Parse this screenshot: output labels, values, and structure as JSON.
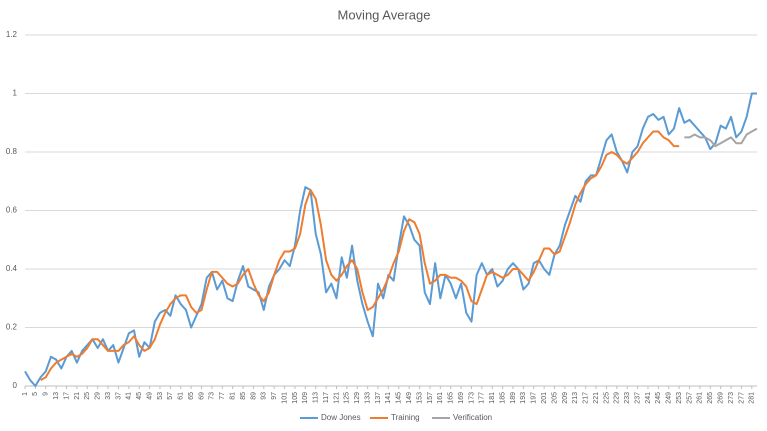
{
  "chart_data": {
    "type": "line",
    "title": "Moving Average",
    "x": [
      1,
      3,
      5,
      7,
      9,
      11,
      13,
      15,
      17,
      19,
      21,
      23,
      25,
      27,
      29,
      31,
      33,
      35,
      37,
      39,
      41,
      43,
      45,
      47,
      49,
      51,
      53,
      55,
      57,
      59,
      61,
      63,
      65,
      67,
      69,
      71,
      73,
      75,
      77,
      79,
      81,
      83,
      85,
      87,
      89,
      91,
      93,
      95,
      97,
      99,
      101,
      103,
      105,
      107,
      109,
      111,
      113,
      115,
      117,
      119,
      121,
      123,
      125,
      127,
      129,
      131,
      133,
      135,
      137,
      139,
      141,
      143,
      145,
      147,
      149,
      151,
      153,
      155,
      157,
      159,
      161,
      163,
      165,
      167,
      169,
      171,
      173,
      175,
      177,
      179,
      181,
      183,
      185,
      187,
      189,
      191,
      193,
      195,
      197,
      199,
      201,
      203,
      205,
      207,
      209,
      211,
      213,
      215,
      217,
      219,
      221,
      223,
      225,
      227,
      229,
      231,
      233,
      235,
      237,
      239,
      241,
      243,
      245,
      247,
      249,
      251,
      253,
      255,
      257,
      259,
      261,
      263,
      265,
      267,
      269,
      271,
      273,
      275,
      277,
      279,
      281,
      283
    ],
    "xlim": [
      1,
      283
    ],
    "xticks": [
      1,
      5,
      9,
      13,
      17,
      21,
      25,
      29,
      33,
      37,
      41,
      45,
      49,
      53,
      57,
      61,
      65,
      69,
      73,
      77,
      81,
      85,
      89,
      93,
      97,
      101,
      105,
      109,
      113,
      117,
      121,
      125,
      129,
      133,
      137,
      141,
      145,
      149,
      153,
      157,
      161,
      165,
      169,
      173,
      177,
      181,
      185,
      189,
      193,
      197,
      201,
      205,
      209,
      213,
      217,
      221,
      225,
      229,
      233,
      237,
      241,
      245,
      249,
      253,
      257,
      261,
      265,
      269,
      273,
      277,
      281
    ],
    "ylim": [
      0,
      1.2
    ],
    "yticks": [
      0,
      0.2,
      0.4,
      0.6,
      0.8,
      1,
      1.2
    ],
    "grid": true,
    "legend": "bottom",
    "series": [
      {
        "name": "Dow Jones",
        "color": "#5b9bd5",
        "values": [
          0.05,
          0.02,
          0,
          0.03,
          0.05,
          0.1,
          0.09,
          0.06,
          0.1,
          0.12,
          0.08,
          0.12,
          0.14,
          0.16,
          0.13,
          0.16,
          0.12,
          0.14,
          0.08,
          0.13,
          0.18,
          0.19,
          0.1,
          0.15,
          0.13,
          0.22,
          0.25,
          0.26,
          0.24,
          0.31,
          0.28,
          0.26,
          0.2,
          0.24,
          0.28,
          0.37,
          0.39,
          0.33,
          0.36,
          0.3,
          0.29,
          0.36,
          0.41,
          0.34,
          0.33,
          0.32,
          0.26,
          0.34,
          0.38,
          0.4,
          0.43,
          0.41,
          0.48,
          0.6,
          0.68,
          0.67,
          0.52,
          0.45,
          0.32,
          0.35,
          0.3,
          0.44,
          0.37,
          0.48,
          0.36,
          0.28,
          0.22,
          0.17,
          0.35,
          0.3,
          0.38,
          0.36,
          0.48,
          0.58,
          0.55,
          0.5,
          0.48,
          0.32,
          0.28,
          0.42,
          0.3,
          0.38,
          0.35,
          0.3,
          0.35,
          0.25,
          0.22,
          0.38,
          0.42,
          0.38,
          0.4,
          0.34,
          0.36,
          0.4,
          0.42,
          0.4,
          0.33,
          0.35,
          0.42,
          0.43,
          0.4,
          0.38,
          0.45,
          0.48,
          0.55,
          0.6,
          0.65,
          0.63,
          0.7,
          0.72,
          0.72,
          0.78,
          0.84,
          0.86,
          0.8,
          0.77,
          0.73,
          0.8,
          0.82,
          0.88,
          0.92,
          0.93,
          0.91,
          0.92,
          0.86,
          0.88,
          0.95,
          0.9,
          0.91,
          0.89,
          0.87,
          0.85,
          0.81,
          0.83,
          0.89,
          0.88,
          0.92,
          0.85,
          0.87,
          0.92,
          1.0,
          1.0
        ]
      },
      {
        "name": "Training",
        "color": "#ed7d31",
        "values": [
          null,
          null,
          null,
          0.02,
          0.03,
          0.06,
          0.08,
          0.09,
          0.1,
          0.11,
          0.1,
          0.11,
          0.13,
          0.16,
          0.16,
          0.14,
          0.12,
          0.12,
          0.12,
          0.14,
          0.15,
          0.17,
          0.14,
          0.12,
          0.13,
          0.16,
          0.21,
          0.25,
          0.28,
          0.3,
          0.31,
          0.31,
          0.27,
          0.25,
          0.26,
          0.33,
          0.39,
          0.39,
          0.37,
          0.35,
          0.34,
          0.35,
          0.38,
          0.4,
          0.35,
          0.31,
          0.29,
          0.32,
          0.38,
          0.43,
          0.46,
          0.46,
          0.47,
          0.52,
          0.62,
          0.67,
          0.64,
          0.55,
          0.43,
          0.38,
          0.36,
          0.38,
          0.41,
          0.43,
          0.4,
          0.32,
          0.26,
          0.27,
          0.3,
          0.33,
          0.37,
          0.42,
          0.46,
          0.53,
          0.57,
          0.56,
          0.52,
          0.42,
          0.35,
          0.36,
          0.38,
          0.38,
          0.37,
          0.37,
          0.36,
          0.34,
          0.29,
          0.28,
          0.33,
          0.38,
          0.39,
          0.38,
          0.37,
          0.38,
          0.4,
          0.4,
          0.38,
          0.36,
          0.39,
          0.43,
          0.47,
          0.47,
          0.45,
          0.46,
          0.51,
          0.56,
          0.62,
          0.66,
          0.69,
          0.71,
          0.72,
          0.75,
          0.79,
          0.8,
          0.79,
          0.77,
          0.76,
          0.78,
          0.8,
          0.83,
          0.85,
          0.87,
          0.87,
          0.85,
          0.84,
          0.82,
          0.82,
          null,
          null,
          null,
          null,
          null,
          null,
          null,
          null,
          null,
          null,
          null,
          null,
          null,
          null,
          null
        ]
      },
      {
        "name": "Verification",
        "color": "#a5a5a5",
        "values": [
          null,
          null,
          null,
          null,
          null,
          null,
          null,
          null,
          null,
          null,
          null,
          null,
          null,
          null,
          null,
          null,
          null,
          null,
          null,
          null,
          null,
          null,
          null,
          null,
          null,
          null,
          null,
          null,
          null,
          null,
          null,
          null,
          null,
          null,
          null,
          null,
          null,
          null,
          null,
          null,
          null,
          null,
          null,
          null,
          null,
          null,
          null,
          null,
          null,
          null,
          null,
          null,
          null,
          null,
          null,
          null,
          null,
          null,
          null,
          null,
          null,
          null,
          null,
          null,
          null,
          null,
          null,
          null,
          null,
          null,
          null,
          null,
          null,
          null,
          null,
          null,
          null,
          null,
          null,
          null,
          null,
          null,
          null,
          null,
          null,
          null,
          null,
          null,
          null,
          null,
          null,
          null,
          null,
          null,
          null,
          null,
          null,
          null,
          null,
          null,
          null,
          null,
          null,
          null,
          null,
          null,
          null,
          null,
          null,
          null,
          null,
          null,
          null,
          null,
          null,
          null,
          null,
          null,
          null,
          null,
          null,
          null,
          null,
          null,
          null,
          null,
          null,
          0.85,
          0.85,
          0.86,
          0.85,
          0.85,
          0.84,
          0.82,
          0.83,
          0.84,
          0.85,
          0.83,
          0.83,
          0.86,
          0.87,
          0.88
        ]
      }
    ]
  }
}
